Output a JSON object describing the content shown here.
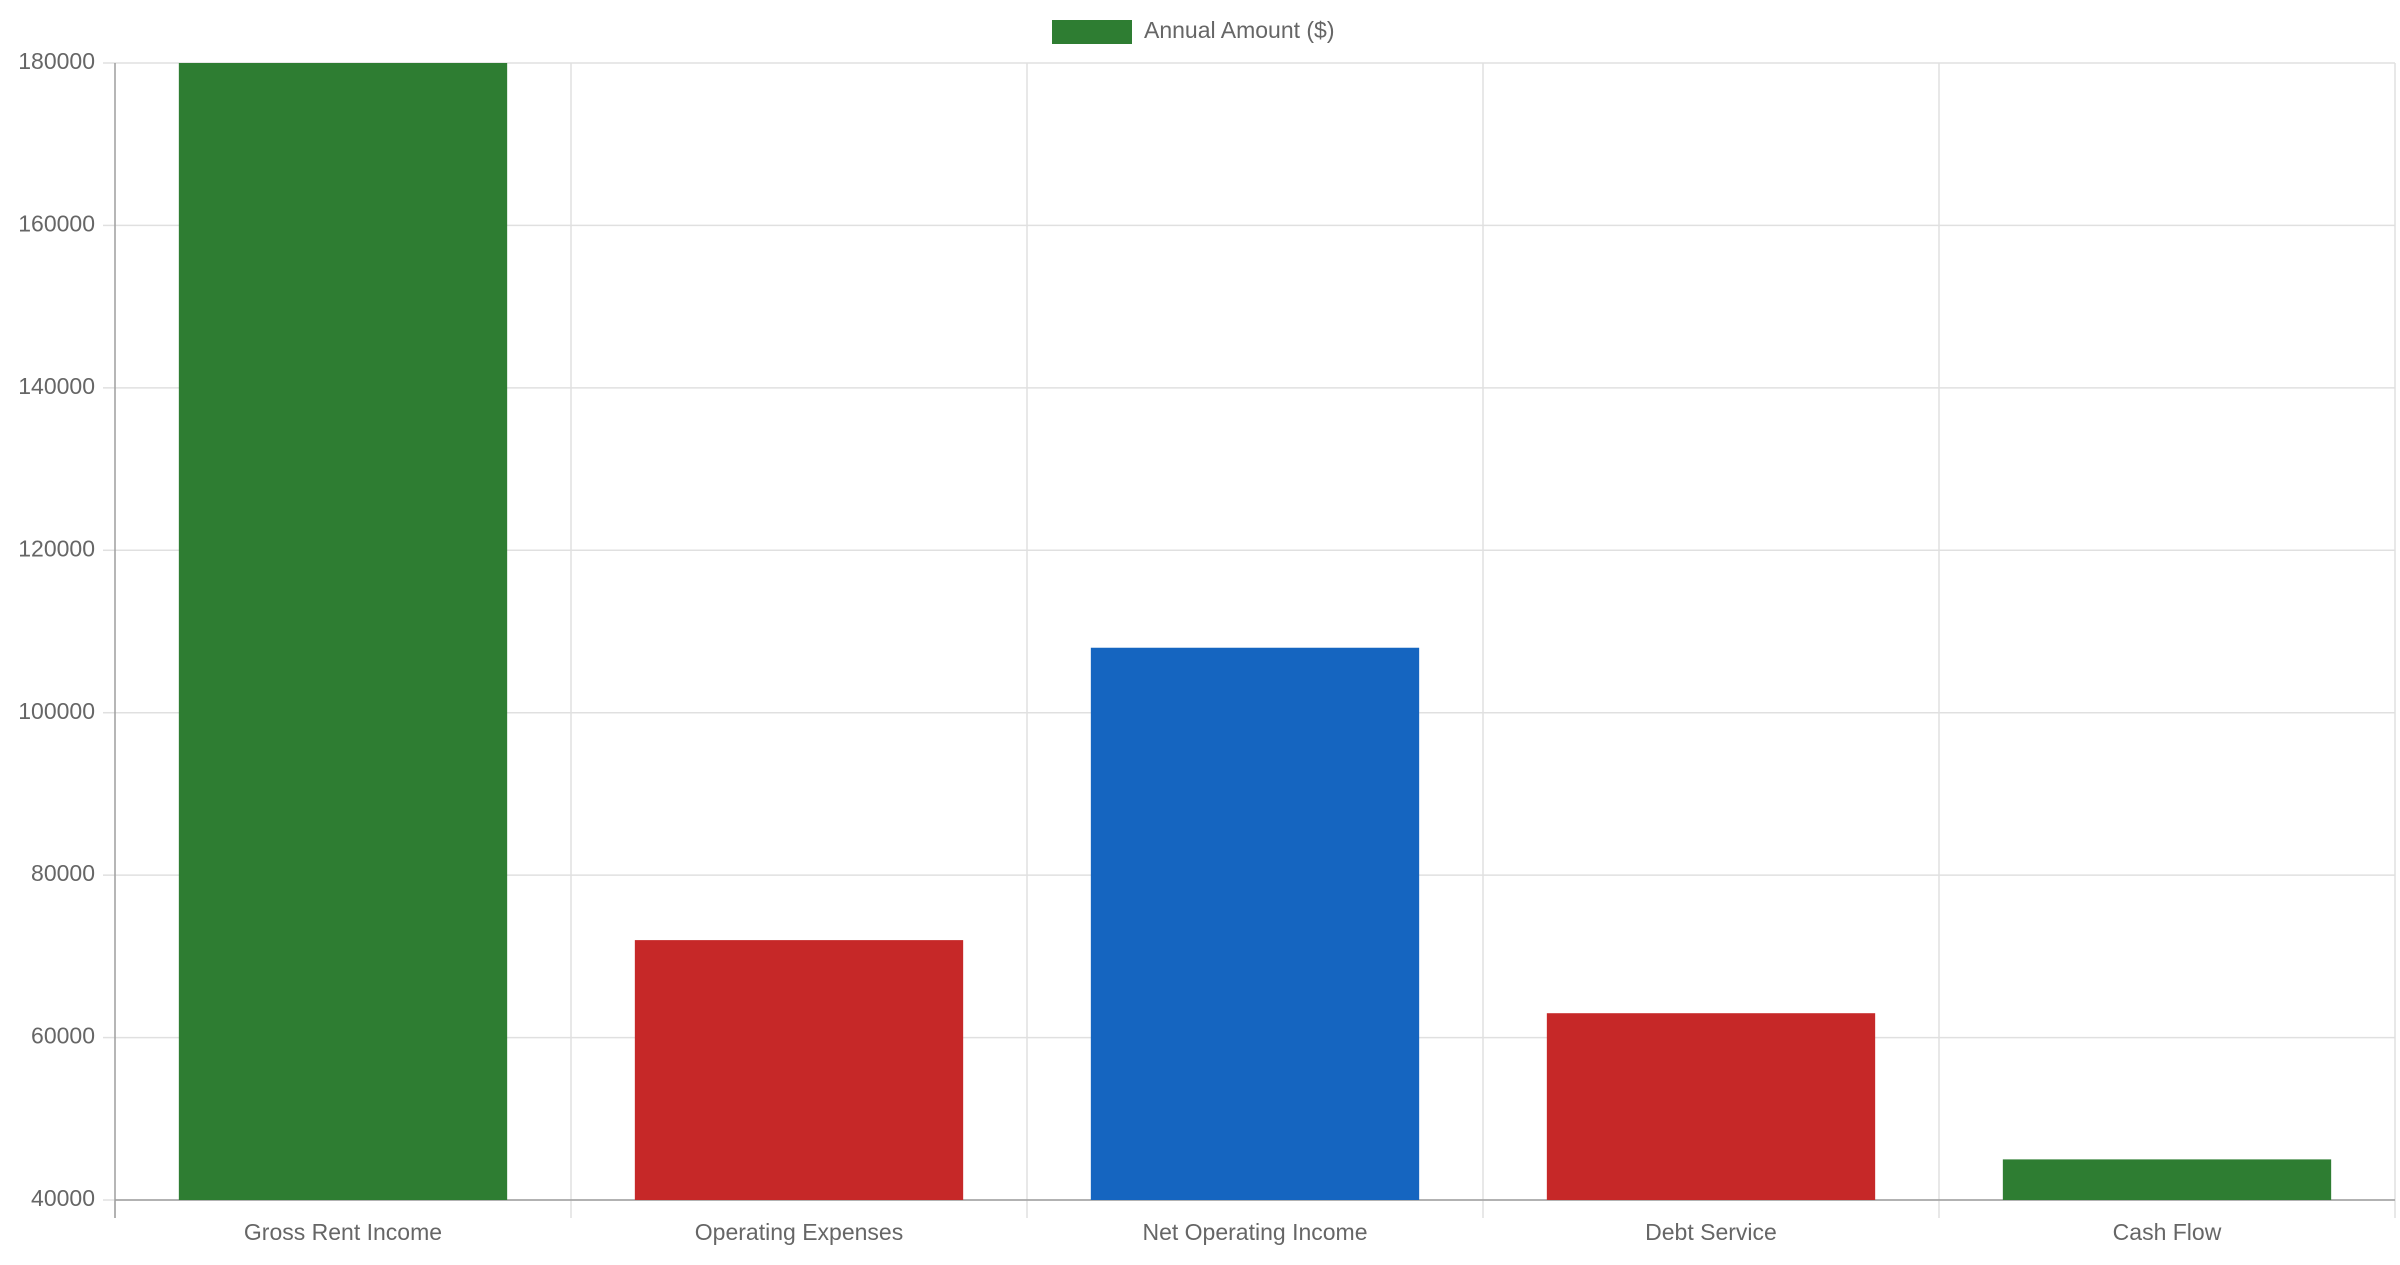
{
  "chart_data": {
    "type": "bar",
    "legend": {
      "position": "top-center",
      "label": "Annual Amount ($)",
      "swatch_color": "#2e7d32"
    },
    "categories": [
      "Gross Rent Income",
      "Operating Expenses",
      "Net Operating Income",
      "Debt Service",
      "Cash Flow"
    ],
    "series": [
      {
        "name": "Annual Amount ($)",
        "values": [
          180000,
          72000,
          108000,
          63000,
          45000
        ],
        "colors": [
          "#2e7d32",
          "#c62828",
          "#1565c0",
          "#c62828",
          "#2e7d32"
        ]
      }
    ],
    "ylim": [
      40000,
      180000
    ],
    "yticks": [
      "40000",
      "60000",
      "80000",
      "100000",
      "120000",
      "140000",
      "160000",
      "180000"
    ],
    "grid": true,
    "colors": {
      "grid": "#e0e0e0",
      "axis": "#9e9e9e",
      "text": "#666666"
    }
  }
}
